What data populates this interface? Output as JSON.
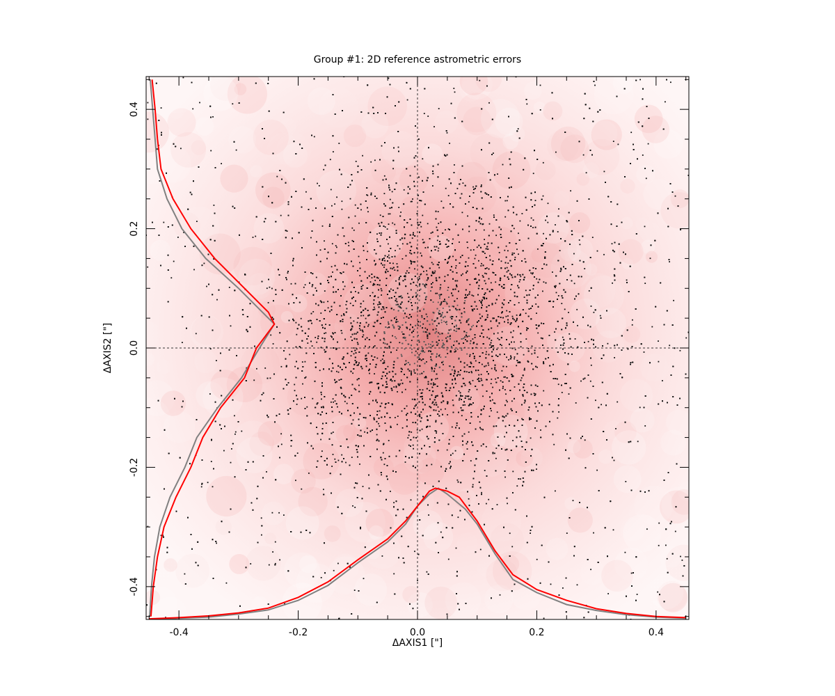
{
  "chart_data": {
    "type": "scatter",
    "title": "Group #1: 2D reference astrometric errors",
    "xlabel": "ΔAXIS1 [\"]",
    "ylabel": "ΔAXIS2 [\"]",
    "xlim": [
      -0.455,
      0.455
    ],
    "ylim": [
      -0.455,
      0.455
    ],
    "x_ticks": [
      -0.4,
      -0.2,
      0.0,
      0.2,
      0.4
    ],
    "x_tick_labels": [
      "-0.4",
      "-0.2",
      "0.0",
      "0.2",
      "0.4"
    ],
    "y_ticks": [
      -0.4,
      -0.2,
      0.0,
      0.2,
      0.4
    ],
    "y_tick_labels": [
      "-0.4",
      "-0.2",
      "0.0",
      "0.2",
      "0.4"
    ],
    "grid": false,
    "zero_lines": "dashed",
    "legend": "none",
    "point_cloud": {
      "center": [
        0.02,
        0.03
      ],
      "sigma": [
        0.13,
        0.13
      ],
      "approx_count": 20000,
      "color": "#111111",
      "density_shading_color": "#f2a0a0"
    },
    "series": [
      {
        "color": "#ff0000",
        "axis": "x",
        "points": [
          [
            -0.45,
            -0.454
          ],
          [
            -0.4,
            -0.452
          ],
          [
            -0.35,
            -0.449
          ],
          [
            -0.3,
            -0.444
          ],
          [
            -0.25,
            -0.436
          ],
          [
            -0.2,
            -0.418
          ],
          [
            -0.15,
            -0.392
          ],
          [
            -0.1,
            -0.355
          ],
          [
            -0.05,
            -0.32
          ],
          [
            -0.02,
            -0.29
          ],
          [
            0.0,
            -0.265
          ],
          [
            0.02,
            -0.24
          ],
          [
            0.03,
            -0.235
          ],
          [
            0.05,
            -0.24
          ],
          [
            0.07,
            -0.25
          ],
          [
            0.1,
            -0.29
          ],
          [
            0.13,
            -0.34
          ],
          [
            0.16,
            -0.38
          ],
          [
            0.2,
            -0.405
          ],
          [
            0.25,
            -0.423
          ],
          [
            0.3,
            -0.437
          ],
          [
            0.35,
            -0.445
          ],
          [
            0.4,
            -0.45
          ],
          [
            0.45,
            -0.452
          ]
        ]
      },
      {
        "color": "#808080",
        "axis": "x",
        "points": [
          [
            -0.45,
            -0.455
          ],
          [
            -0.4,
            -0.453
          ],
          [
            -0.35,
            -0.451
          ],
          [
            -0.3,
            -0.446
          ],
          [
            -0.25,
            -0.439
          ],
          [
            -0.2,
            -0.423
          ],
          [
            -0.15,
            -0.398
          ],
          [
            -0.1,
            -0.36
          ],
          [
            -0.05,
            -0.325
          ],
          [
            -0.02,
            -0.295
          ],
          [
            0.0,
            -0.265
          ],
          [
            0.02,
            -0.245
          ],
          [
            0.035,
            -0.235
          ],
          [
            0.05,
            -0.245
          ],
          [
            0.08,
            -0.27
          ],
          [
            0.1,
            -0.295
          ],
          [
            0.13,
            -0.345
          ],
          [
            0.16,
            -0.388
          ],
          [
            0.2,
            -0.41
          ],
          [
            0.25,
            -0.43
          ],
          [
            0.3,
            -0.44
          ],
          [
            0.35,
            -0.447
          ],
          [
            0.4,
            -0.451
          ],
          [
            0.45,
            -0.453
          ]
        ]
      },
      {
        "color": "#ff0000",
        "axis": "y",
        "points": [
          [
            -0.445,
            0.45
          ],
          [
            -0.44,
            0.4
          ],
          [
            -0.436,
            0.35
          ],
          [
            -0.43,
            0.3
          ],
          [
            -0.41,
            0.25
          ],
          [
            -0.38,
            0.2
          ],
          [
            -0.34,
            0.15
          ],
          [
            -0.29,
            0.1
          ],
          [
            -0.25,
            0.06
          ],
          [
            -0.24,
            0.04
          ],
          [
            -0.27,
            0.0
          ],
          [
            -0.29,
            -0.05
          ],
          [
            -0.33,
            -0.1
          ],
          [
            -0.36,
            -0.15
          ],
          [
            -0.38,
            -0.2
          ],
          [
            -0.405,
            -0.25
          ],
          [
            -0.425,
            -0.3
          ],
          [
            -0.436,
            -0.35
          ],
          [
            -0.443,
            -0.4
          ],
          [
            -0.447,
            -0.45
          ]
        ]
      },
      {
        "color": "#808080",
        "axis": "y",
        "points": [
          [
            -0.448,
            0.45
          ],
          [
            -0.444,
            0.4
          ],
          [
            -0.44,
            0.35
          ],
          [
            -0.436,
            0.3
          ],
          [
            -0.42,
            0.25
          ],
          [
            -0.395,
            0.2
          ],
          [
            -0.355,
            0.15
          ],
          [
            -0.3,
            0.1
          ],
          [
            -0.26,
            0.06
          ],
          [
            -0.24,
            0.04
          ],
          [
            -0.265,
            0.0
          ],
          [
            -0.295,
            -0.05
          ],
          [
            -0.335,
            -0.1
          ],
          [
            -0.37,
            -0.15
          ],
          [
            -0.39,
            -0.2
          ],
          [
            -0.415,
            -0.25
          ],
          [
            -0.432,
            -0.3
          ],
          [
            -0.441,
            -0.35
          ],
          [
            -0.446,
            -0.4
          ],
          [
            -0.449,
            -0.45
          ]
        ]
      }
    ]
  }
}
